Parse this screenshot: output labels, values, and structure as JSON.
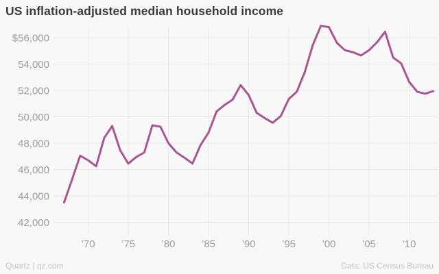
{
  "title": "US inflation-adjusted median household income",
  "footer": {
    "credit": "Quartz | qz.com",
    "source": "Data: US Census Bureau"
  },
  "colors": {
    "background": "#f8f8f8",
    "gridline": "#e9e9e9",
    "title_text": "#3b3b3b",
    "axis_text": "#9c9c9c",
    "footer_text": "#c5c5c5",
    "line": "#a85590"
  },
  "chart_data": {
    "type": "line",
    "title": "US inflation-adjusted median household income",
    "xlabel": "",
    "ylabel": "",
    "grid": true,
    "legend": "none",
    "xlim": [
      1967,
      2013
    ],
    "ylim": [
      42000,
      57200
    ],
    "x": [
      1967,
      1968,
      1969,
      1970,
      1971,
      1972,
      1973,
      1974,
      1975,
      1976,
      1977,
      1978,
      1979,
      1980,
      1981,
      1982,
      1983,
      1984,
      1985,
      1986,
      1987,
      1988,
      1989,
      1990,
      1991,
      1992,
      1993,
      1994,
      1995,
      1996,
      1997,
      1998,
      1999,
      2000,
      2001,
      2002,
      2003,
      2004,
      2005,
      2006,
      2007,
      2008,
      2009,
      2010,
      2011,
      2012,
      2013
    ],
    "values": [
      43500,
      45250,
      47050,
      46700,
      46250,
      48400,
      49300,
      47450,
      46450,
      46950,
      47300,
      49350,
      49250,
      48000,
      47300,
      46900,
      46450,
      47850,
      48800,
      50400,
      50900,
      51300,
      52400,
      51650,
      50300,
      49900,
      49550,
      50050,
      51350,
      51900,
      53400,
      55450,
      56900,
      56800,
      55600,
      55050,
      54900,
      54650,
      55050,
      55650,
      56450,
      54500,
      54050,
      52650,
      51900,
      51750,
      51950
    ],
    "y_ticks": [
      {
        "value": 56000,
        "label": "$56,000"
      },
      {
        "value": 54000,
        "label": "54,000"
      },
      {
        "value": 52000,
        "label": "52,000"
      },
      {
        "value": 50000,
        "label": "50,000"
      },
      {
        "value": 48000,
        "label": "48,000"
      },
      {
        "value": 46000,
        "label": "46,000"
      },
      {
        "value": 44000,
        "label": "44,000"
      },
      {
        "value": 42000,
        "label": "42,000"
      }
    ],
    "x_ticks": [
      {
        "value": 1970,
        "label": "’70"
      },
      {
        "value": 1975,
        "label": "’75"
      },
      {
        "value": 1980,
        "label": "’80"
      },
      {
        "value": 1985,
        "label": "’85"
      },
      {
        "value": 1990,
        "label": "’90"
      },
      {
        "value": 1995,
        "label": "’95"
      },
      {
        "value": 2000,
        "label": "’00"
      },
      {
        "value": 2005,
        "label": "’05"
      },
      {
        "value": 2010,
        "label": "’10"
      }
    ]
  }
}
